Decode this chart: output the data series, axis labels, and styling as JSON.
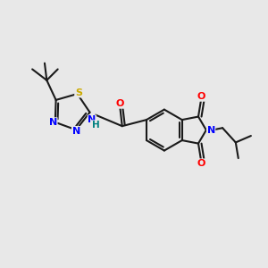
{
  "bg_color": "#e8e8e8",
  "bond_color": "#1a1a1a",
  "bond_width": 1.5,
  "atom_colors": {
    "N": "#0000ff",
    "O": "#ff0000",
    "S": "#ccaa00",
    "C": "#1a1a1a",
    "H": "#008080",
    "NH": "#008080"
  },
  "figsize": [
    3.0,
    3.0
  ],
  "dpi": 100
}
